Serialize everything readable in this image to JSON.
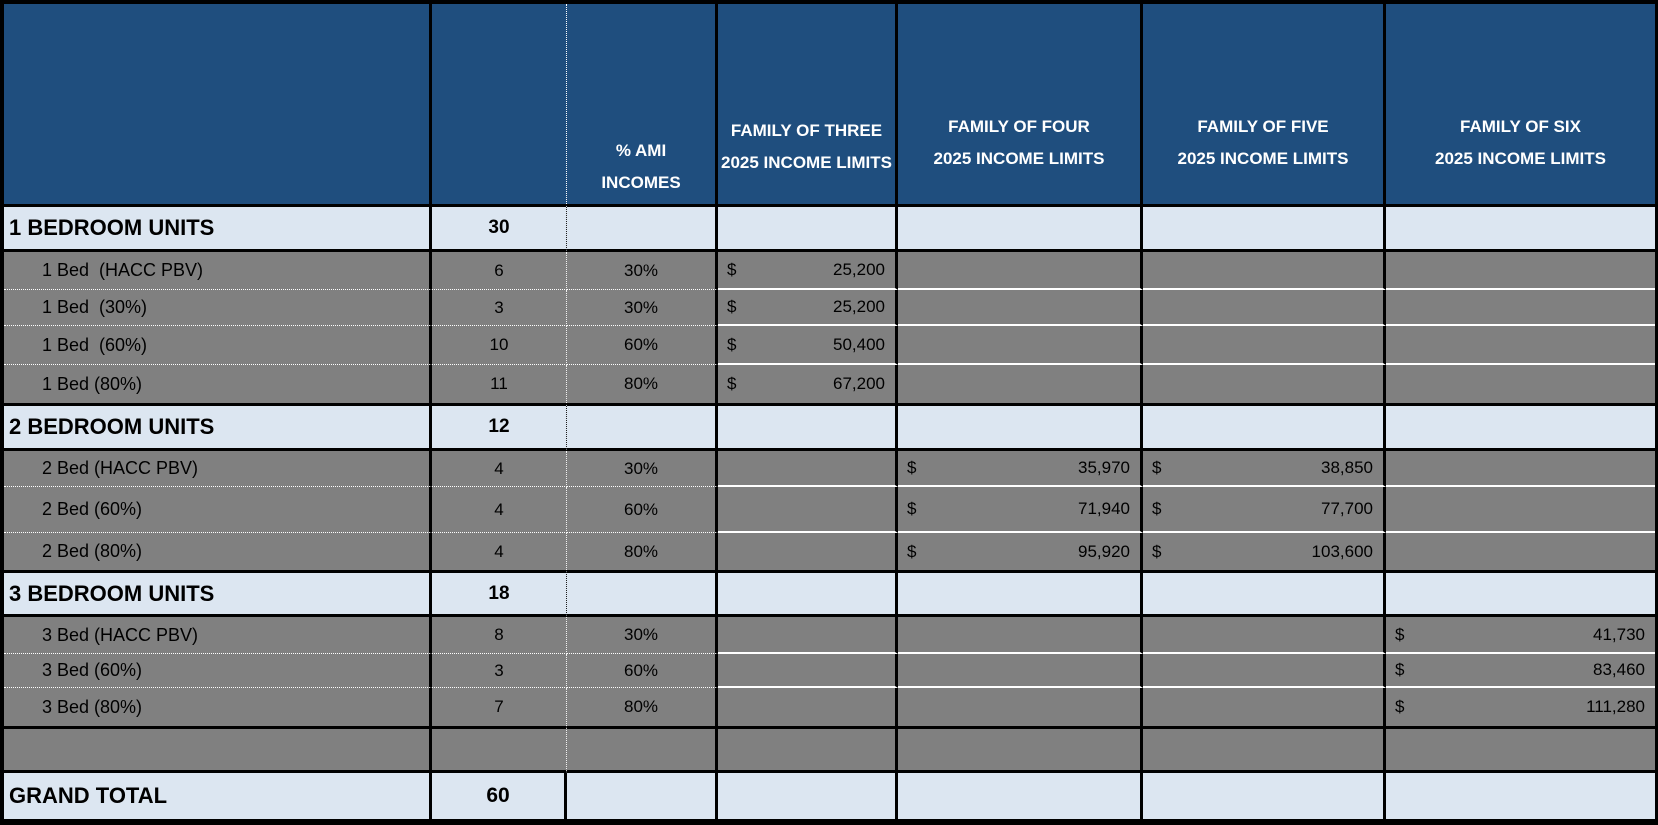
{
  "colors": {
    "header_bg": "#1F4E7E",
    "section_bg": "#DCE6F1",
    "data_bg": "#808080",
    "border": "#000000",
    "header_text": "#FFFFFF"
  },
  "header": {
    "ami_line1": "% AMI",
    "ami_line2": "INCOMES",
    "three_line1": "FAMILY OF THREE",
    "three_line2": "2025 INCOME LIMITS",
    "four_line1": "FAMILY OF FOUR",
    "four_line2": "2025 INCOME LIMITS",
    "five_line1": "FAMILY OF FIVE",
    "five_line2": "2025 INCOME LIMITS",
    "six_line1": "FAMILY OF SIX",
    "six_line2": "2025 INCOME LIMITS"
  },
  "rows": [
    {
      "label": "1 BEDROOM UNITS",
      "count": "30",
      "ami": "",
      "f3s": "",
      "f3": "",
      "f4s": "",
      "f4": "",
      "f5s": "",
      "f5": "",
      "f6s": "",
      "f6": ""
    },
    {
      "label": "1 Bed  (HACC PBV)",
      "count": "6",
      "ami": "30%",
      "f3s": "$",
      "f3": "25,200",
      "f4s": "",
      "f4": "",
      "f5s": "",
      "f5": "",
      "f6s": "",
      "f6": ""
    },
    {
      "label": "1 Bed  (30%)",
      "count": "3",
      "ami": "30%",
      "f3s": "$",
      "f3": "25,200",
      "f4s": "",
      "f4": "",
      "f5s": "",
      "f5": "",
      "f6s": "",
      "f6": ""
    },
    {
      "label": "1 Bed  (60%)",
      "count": "10",
      "ami": "60%",
      "f3s": "$",
      "f3": "50,400",
      "f4s": "",
      "f4": "",
      "f5s": "",
      "f5": "",
      "f6s": "",
      "f6": ""
    },
    {
      "label": "1 Bed (80%)",
      "count": "11",
      "ami": "80%",
      "f3s": "$",
      "f3": "67,200",
      "f4s": "",
      "f4": "",
      "f5s": "",
      "f5": "",
      "f6s": "",
      "f6": ""
    },
    {
      "label": "2 BEDROOM UNITS",
      "count": "12",
      "ami": "",
      "f3s": "",
      "f3": "",
      "f4s": "",
      "f4": "",
      "f5s": "",
      "f5": "",
      "f6s": "",
      "f6": ""
    },
    {
      "label": "2 Bed (HACC PBV)",
      "count": "4",
      "ami": "30%",
      "f3s": "",
      "f3": "",
      "f4s": "$",
      "f4": "35,970",
      "f5s": "$",
      "f5": "38,850",
      "f6s": "",
      "f6": ""
    },
    {
      "label": "2 Bed (60%)",
      "count": "4",
      "ami": "60%",
      "f3s": "",
      "f3": "",
      "f4s": "$",
      "f4": "71,940",
      "f5s": "$",
      "f5": "77,700",
      "f6s": "",
      "f6": ""
    },
    {
      "label": "2 Bed (80%)",
      "count": "4",
      "ami": "80%",
      "f3s": "",
      "f3": "",
      "f4s": "$",
      "f4": "95,920",
      "f5s": "$",
      "f5": "103,600",
      "f6s": "",
      "f6": ""
    },
    {
      "label": "3 BEDROOM UNITS",
      "count": "18",
      "ami": "",
      "f3s": "",
      "f3": "",
      "f4s": "",
      "f4": "",
      "f5s": "",
      "f5": "",
      "f6s": "",
      "f6": ""
    },
    {
      "label": "3 Bed (HACC PBV)",
      "count": "8",
      "ami": "30%",
      "f3s": "",
      "f3": "",
      "f4s": "",
      "f4": "",
      "f5s": "",
      "f5": "",
      "f6s": "$",
      "f6": "41,730"
    },
    {
      "label": "3 Bed (60%)",
      "count": "3",
      "ami": "60%",
      "f3s": "",
      "f3": "",
      "f4s": "",
      "f4": "",
      "f5s": "",
      "f5": "",
      "f6s": "$",
      "f6": "83,460"
    },
    {
      "label": "3 Bed (80%)",
      "count": "7",
      "ami": "80%",
      "f3s": "",
      "f3": "",
      "f4s": "",
      "f4": "",
      "f5s": "",
      "f5": "",
      "f6s": "$",
      "f6": "111,280"
    },
    {
      "label": "",
      "count": "",
      "ami": "",
      "f3s": "",
      "f3": "",
      "f4s": "",
      "f4": "",
      "f5s": "",
      "f5": "",
      "f6s": "",
      "f6": ""
    },
    {
      "label": "GRAND TOTAL",
      "count": "60",
      "ami": "",
      "f3s": "",
      "f3": "",
      "f4s": "",
      "f4": "",
      "f5s": "",
      "f5": "",
      "f6s": "",
      "f6": ""
    }
  ]
}
